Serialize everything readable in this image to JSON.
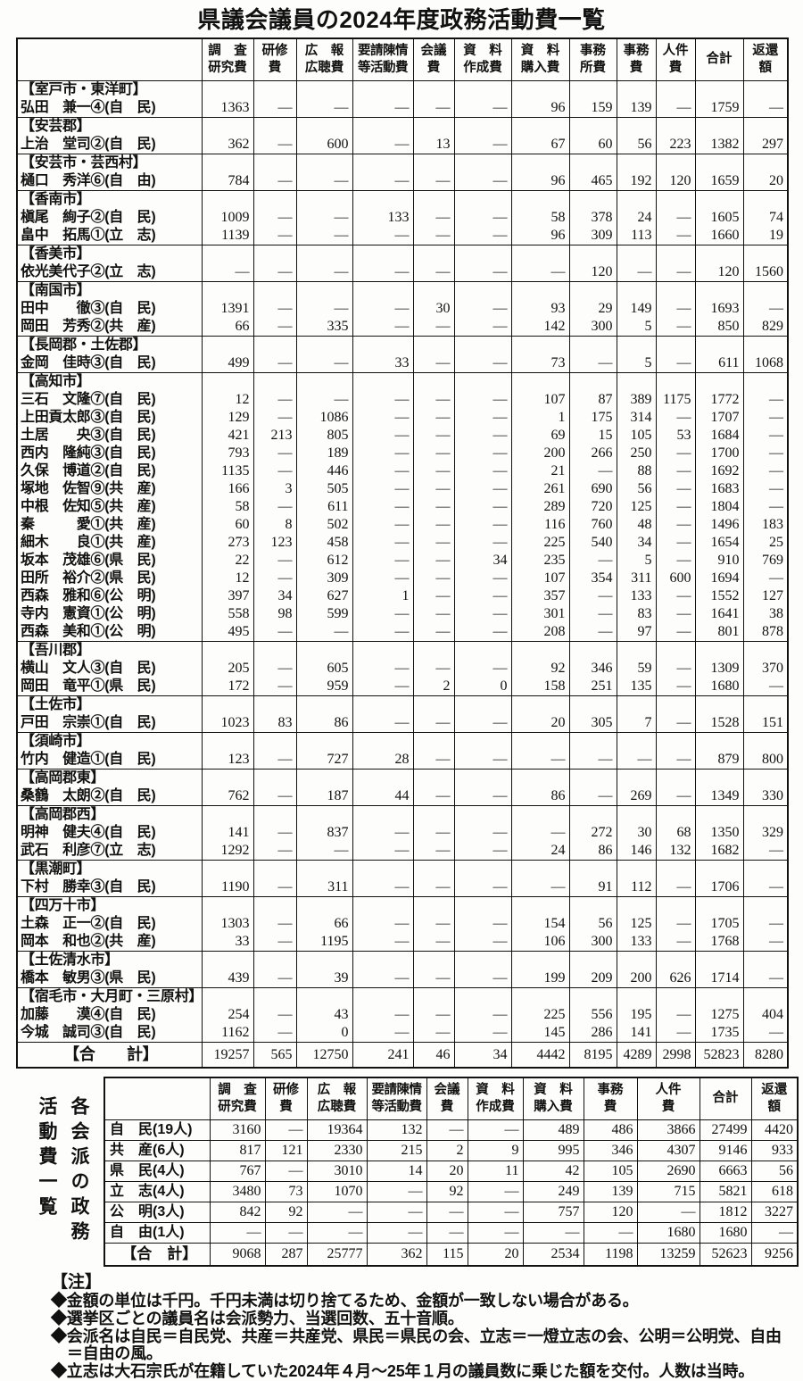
{
  "title": "県議会議員の2024年度政務活動費一覧",
  "colors": {
    "background": "#fdfdfc",
    "text": "#111111",
    "border": "#111111"
  },
  "unit": "千円",
  "table1": {
    "column_headers": [
      [
        "調　査",
        "研究費"
      ],
      [
        "研修",
        "費"
      ],
      [
        "広　報",
        "広聴費"
      ],
      [
        "要請陳情",
        "等活動費"
      ],
      [
        "会議",
        "費"
      ],
      [
        "資　料",
        "作成費"
      ],
      [
        "資　料",
        "購入費"
      ],
      [
        "事務",
        "所費"
      ],
      [
        "事務",
        "費"
      ],
      [
        "人件",
        "費"
      ],
      [
        "合計"
      ],
      [
        "返還",
        "額"
      ]
    ],
    "groups": [
      {
        "district": "【室戸市・東洋町】",
        "members": [
          {
            "name": "弘田　兼一④(自　民)",
            "values": [
              "1363",
              "—",
              "—",
              "—",
              "—",
              "—",
              "96",
              "159",
              "139",
              "—",
              "1759",
              "—"
            ]
          }
        ]
      },
      {
        "district": "【安芸郡】",
        "members": [
          {
            "name": "上治　堂司②(自　民)",
            "values": [
              "362",
              "—",
              "600",
              "—",
              "13",
              "—",
              "67",
              "60",
              "56",
              "223",
              "1382",
              "297"
            ]
          }
        ]
      },
      {
        "district": "【安芸市・芸西村】",
        "members": [
          {
            "name": "樋口　秀洋⑥(自　由)",
            "values": [
              "784",
              "—",
              "—",
              "—",
              "—",
              "—",
              "96",
              "465",
              "192",
              "120",
              "1659",
              "20"
            ]
          }
        ]
      },
      {
        "district": "【香南市】",
        "members": [
          {
            "name": "槇尾　絢子②(自　民)",
            "values": [
              "1009",
              "—",
              "—",
              "133",
              "—",
              "—",
              "58",
              "378",
              "24",
              "—",
              "1605",
              "74"
            ]
          },
          {
            "name": "畠中　拓馬①(立　志)",
            "values": [
              "1139",
              "—",
              "—",
              "—",
              "—",
              "—",
              "96",
              "309",
              "113",
              "—",
              "1660",
              "19"
            ]
          }
        ]
      },
      {
        "district": "【香美市】",
        "members": [
          {
            "name": "依光美代子②(立　志)",
            "values": [
              "—",
              "—",
              "—",
              "—",
              "—",
              "—",
              "—",
              "120",
              "—",
              "—",
              "120",
              "1560"
            ]
          }
        ]
      },
      {
        "district": "【南国市】",
        "members": [
          {
            "name": "田中　　徹③(自　民)",
            "values": [
              "1391",
              "—",
              "—",
              "—",
              "30",
              "—",
              "93",
              "29",
              "149",
              "—",
              "1693",
              "—"
            ]
          },
          {
            "name": "岡田　芳秀②(共　産)",
            "values": [
              "66",
              "—",
              "335",
              "—",
              "—",
              "—",
              "142",
              "300",
              "5",
              "—",
              "850",
              "829"
            ]
          }
        ]
      },
      {
        "district": "【長岡郡・土佐郡】",
        "members": [
          {
            "name": "金岡　佳時③(自　民)",
            "values": [
              "499",
              "—",
              "—",
              "33",
              "—",
              "—",
              "73",
              "—",
              "5",
              "—",
              "611",
              "1068"
            ]
          }
        ]
      },
      {
        "district": "【高知市】",
        "members": [
          {
            "name": "三石　文隆⑦(自　民)",
            "values": [
              "12",
              "—",
              "—",
              "—",
              "—",
              "—",
              "107",
              "87",
              "389",
              "1175",
              "1772",
              "—"
            ]
          },
          {
            "name": "上田貢太郎③(自　民)",
            "values": [
              "129",
              "—",
              "1086",
              "—",
              "—",
              "—",
              "1",
              "175",
              "314",
              "—",
              "1707",
              "—"
            ]
          },
          {
            "name": "土居　　央③(自　民)",
            "values": [
              "421",
              "213",
              "805",
              "—",
              "—",
              "—",
              "69",
              "15",
              "105",
              "53",
              "1684",
              "—"
            ]
          },
          {
            "name": "西内　隆純③(自　民)",
            "values": [
              "793",
              "—",
              "189",
              "—",
              "—",
              "—",
              "200",
              "266",
              "250",
              "—",
              "1700",
              "—"
            ]
          },
          {
            "name": "久保　博道②(自　民)",
            "values": [
              "1135",
              "—",
              "446",
              "—",
              "—",
              "—",
              "21",
              "—",
              "88",
              "—",
              "1692",
              "—"
            ]
          },
          {
            "name": "塚地　佐智⑨(共　産)",
            "values": [
              "166",
              "3",
              "505",
              "—",
              "—",
              "—",
              "261",
              "690",
              "56",
              "—",
              "1683",
              "—"
            ]
          },
          {
            "name": "中根　佐知⑤(共　産)",
            "values": [
              "58",
              "—",
              "611",
              "—",
              "—",
              "—",
              "289",
              "720",
              "125",
              "—",
              "1804",
              "—"
            ]
          },
          {
            "name": "秦　　　愛①(共　産)",
            "values": [
              "60",
              "8",
              "502",
              "—",
              "—",
              "—",
              "116",
              "760",
              "48",
              "—",
              "1496",
              "183"
            ]
          },
          {
            "name": "細木　　良①(共　産)",
            "values": [
              "273",
              "123",
              "458",
              "—",
              "—",
              "—",
              "225",
              "540",
              "34",
              "—",
              "1654",
              "25"
            ]
          },
          {
            "name": "坂本　茂雄⑥(県　民)",
            "values": [
              "22",
              "—",
              "612",
              "—",
              "—",
              "34",
              "235",
              "—",
              "5",
              "—",
              "910",
              "769"
            ]
          },
          {
            "name": "田所　裕介②(県　民)",
            "values": [
              "12",
              "—",
              "309",
              "—",
              "—",
              "—",
              "107",
              "354",
              "311",
              "600",
              "1694",
              "—"
            ]
          },
          {
            "name": "西森　雅和⑥(公　明)",
            "values": [
              "397",
              "34",
              "627",
              "1",
              "—",
              "—",
              "357",
              "—",
              "133",
              "—",
              "1552",
              "127"
            ]
          },
          {
            "name": "寺内　憲資①(公　明)",
            "values": [
              "558",
              "98",
              "599",
              "—",
              "—",
              "—",
              "301",
              "—",
              "83",
              "—",
              "1641",
              "38"
            ]
          },
          {
            "name": "西森　美和①(公　明)",
            "values": [
              "495",
              "—",
              "—",
              "—",
              "—",
              "—",
              "208",
              "—",
              "97",
              "—",
              "801",
              "878"
            ]
          }
        ]
      },
      {
        "district": "【吾川郡】",
        "members": [
          {
            "name": "横山　文人③(自　民)",
            "values": [
              "205",
              "—",
              "605",
              "—",
              "—",
              "—",
              "92",
              "346",
              "59",
              "—",
              "1309",
              "370"
            ]
          },
          {
            "name": "岡田　竜平①(県　民)",
            "values": [
              "172",
              "—",
              "959",
              "—",
              "2",
              "0",
              "158",
              "251",
              "135",
              "—",
              "1680",
              "—"
            ]
          }
        ]
      },
      {
        "district": "【土佐市】",
        "members": [
          {
            "name": "戸田　宗崇①(自　民)",
            "values": [
              "1023",
              "83",
              "86",
              "—",
              "—",
              "—",
              "20",
              "305",
              "7",
              "—",
              "1528",
              "151"
            ]
          }
        ]
      },
      {
        "district": "【須崎市】",
        "members": [
          {
            "name": "竹内　健造①(自　民)",
            "values": [
              "123",
              "—",
              "727",
              "28",
              "—",
              "—",
              "—",
              "—",
              "—",
              "—",
              "879",
              "800"
            ]
          }
        ]
      },
      {
        "district": "【高岡郡東】",
        "members": [
          {
            "name": "桑鶴　太朗②(自　民)",
            "values": [
              "762",
              "—",
              "187",
              "44",
              "—",
              "—",
              "86",
              "—",
              "269",
              "—",
              "1349",
              "330"
            ]
          }
        ]
      },
      {
        "district": "【高岡郡西】",
        "members": [
          {
            "name": "明神　健夫④(自　民)",
            "values": [
              "141",
              "—",
              "837",
              "—",
              "—",
              "—",
              "—",
              "272",
              "30",
              "68",
              "1350",
              "329"
            ]
          },
          {
            "name": "武石　利彦⑦(立　志)",
            "values": [
              "1292",
              "—",
              "—",
              "—",
              "—",
              "—",
              "24",
              "86",
              "146",
              "132",
              "1682",
              "—"
            ]
          }
        ]
      },
      {
        "district": "【黒潮町】",
        "members": [
          {
            "name": "下村　勝幸③(自　民)",
            "values": [
              "1190",
              "—",
              "311",
              "—",
              "—",
              "—",
              "—",
              "91",
              "112",
              "—",
              "1706",
              "—"
            ]
          }
        ]
      },
      {
        "district": "【四万十市】",
        "members": [
          {
            "name": "土森　正一②(自　民)",
            "values": [
              "1303",
              "—",
              "66",
              "—",
              "—",
              "—",
              "154",
              "56",
              "125",
              "—",
              "1705",
              "—"
            ]
          },
          {
            "name": "岡本　和也②(共　産)",
            "values": [
              "33",
              "—",
              "1195",
              "—",
              "—",
              "—",
              "106",
              "300",
              "133",
              "—",
              "1768",
              "—"
            ]
          }
        ]
      },
      {
        "district": "【土佐清水市】",
        "members": [
          {
            "name": "橋本　敏男③(県　民)",
            "values": [
              "439",
              "—",
              "39",
              "—",
              "—",
              "—",
              "199",
              "209",
              "200",
              "626",
              "1714",
              "—"
            ]
          }
        ]
      },
      {
        "district": "【宿毛市・大月町・三原村】",
        "members": [
          {
            "name": "加藤　　漠④(自　民)",
            "values": [
              "254",
              "—",
              "43",
              "—",
              "—",
              "—",
              "225",
              "556",
              "195",
              "—",
              "1275",
              "404"
            ]
          },
          {
            "name": "今城　誠司③(自　民)",
            "values": [
              "1162",
              "—",
              "0",
              "—",
              "—",
              "—",
              "145",
              "286",
              "141",
              "—",
              "1735",
              "—"
            ]
          }
        ]
      }
    ],
    "total_row": {
      "label": "【合　　計】",
      "values": [
        "19257",
        "565",
        "12750",
        "241",
        "46",
        "34",
        "4442",
        "8195",
        "4289",
        "2998",
        "52823",
        "8280"
      ]
    }
  },
  "table2": {
    "vertical_label": [
      "各会派の政務",
      "活動費一覧"
    ],
    "column_headers": [
      [
        "調　査",
        "研究費"
      ],
      [
        "研修",
        "費"
      ],
      [
        "広　報",
        "広聴費"
      ],
      [
        "要請陳情",
        "等活動費"
      ],
      [
        "会議",
        "費"
      ],
      [
        "資　料",
        "作成費"
      ],
      [
        "資　料",
        "購入費"
      ],
      [
        "事務",
        "費"
      ],
      [
        "人件",
        "費"
      ],
      [
        "合計"
      ],
      [
        "返還",
        "額"
      ]
    ],
    "rows": [
      {
        "label": "自　民(19人)",
        "values": [
          "3160",
          "—",
          "19364",
          "132",
          "—",
          "—",
          "489",
          "486",
          "3866",
          "27499",
          "4420"
        ]
      },
      {
        "label": "共　産(6人)",
        "values": [
          "817",
          "121",
          "2330",
          "215",
          "2",
          "9",
          "995",
          "346",
          "4307",
          "9146",
          "933"
        ]
      },
      {
        "label": "県　民(4人)",
        "values": [
          "767",
          "—",
          "3010",
          "14",
          "20",
          "11",
          "42",
          "105",
          "2690",
          "6663",
          "56"
        ]
      },
      {
        "label": "立　志(4人)",
        "values": [
          "3480",
          "73",
          "1070",
          "—",
          "92",
          "—",
          "249",
          "139",
          "715",
          "5821",
          "618"
        ]
      },
      {
        "label": "公　明(3人)",
        "values": [
          "842",
          "92",
          "—",
          "—",
          "—",
          "—",
          "757",
          "120",
          "—",
          "1812",
          "3227"
        ]
      },
      {
        "label": "自　由(1人)",
        "values": [
          "—",
          "—",
          "—",
          "—",
          "—",
          "—",
          "—",
          "—",
          "1680",
          "1680",
          "—"
        ]
      }
    ],
    "total_row": {
      "label": "【合　計】",
      "values": [
        "9068",
        "287",
        "25777",
        "362",
        "115",
        "20",
        "2534",
        "1198",
        "13259",
        "52623",
        "9256"
      ]
    }
  },
  "notes": {
    "heading": "【注】",
    "items": [
      "◆金額の単位は千円。千円未満は切り捨てるため、金額が一致しない場合がある。",
      "◆選挙区ごとの議員名は会派勢力、当選回数、五十音順。",
      "◆会派名は自民＝自民党、共産＝共産党、県民＝県民の会、立志＝一燈立志の会、公明＝公明党、自由＝自由の風。",
      "◆立志は大石宗氏が在籍していた2024年４月～25年１月の議員数に乗じた額を交付。人数は当時。"
    ]
  }
}
